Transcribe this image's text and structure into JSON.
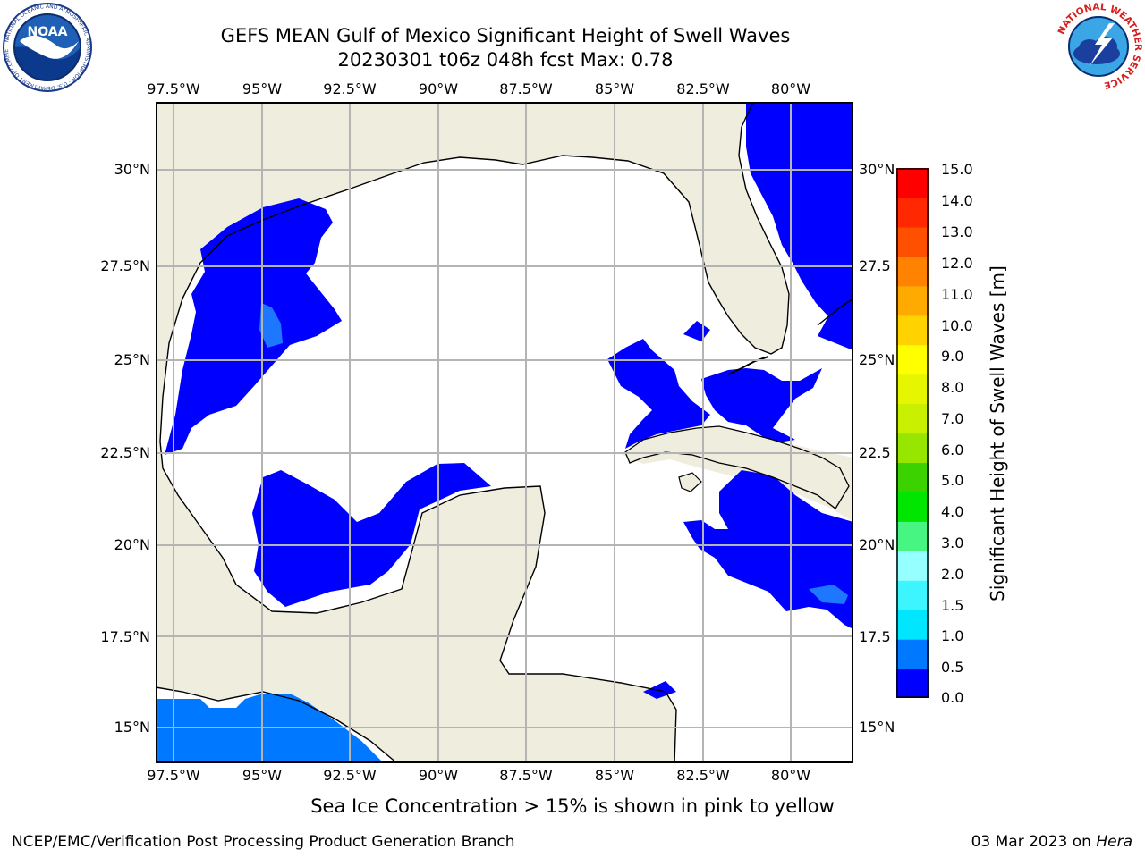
{
  "title_line1": "GEFS MEAN Gulf of Mexico Significant Height of Swell Waves",
  "title_line2": "20230301 t06z 048h fcst   Max: 0.78",
  "logos": {
    "left": {
      "name": "noaa-logo",
      "text": "NOAA",
      "ring_text": "NATIONAL OCEANIC AND ATMOSPHERIC ADMINISTRATION · U.S. DEPARTMENT OF COMMERCE"
    },
    "right": {
      "name": "national-weather-service-logo",
      "ring_text": "NATIONAL WEATHER SERVICE"
    }
  },
  "map": {
    "lon_ticks": [
      "97.5°W",
      "95°W",
      "92.5°W",
      "90°W",
      "87.5°W",
      "85°W",
      "82.5°W",
      "80°W"
    ],
    "lat_ticks_left": [
      "30°N",
      "27.5°N",
      "25°N",
      "22.5°N",
      "20°N",
      "17.5°N",
      "15°N"
    ],
    "lat_ticks_right": [
      "30°N",
      "27.5",
      "25°N",
      "22.5",
      "20°N",
      "17.5",
      "15°N"
    ],
    "colors": {
      "land": "#efedde",
      "ocean": "#ffffff",
      "coast": "#000000",
      "grid": "#b4b4b4"
    }
  },
  "colorbar": {
    "label": "Significant Height of Swell Waves [m]",
    "ticks": [
      "15.0",
      "14.0",
      "13.0",
      "12.0",
      "11.0",
      "10.0",
      "9.0",
      "8.0",
      "7.0",
      "6.0",
      "5.0",
      "4.0",
      "3.0",
      "2.0",
      "1.5",
      "1.0",
      "0.5",
      "0.0"
    ],
    "colors_bottom_to_top": [
      "#0000ff",
      "#0078ff",
      "#00e6ff",
      "#3cf5ff",
      "#96ffff",
      "#46f582",
      "#00e600",
      "#3cd200",
      "#96e600",
      "#c8f000",
      "#e6f500",
      "#ffff00",
      "#ffd200",
      "#ffaa00",
      "#ff8200",
      "#ff5000",
      "#ff2800",
      "#ff0000"
    ]
  },
  "note": "Sea Ice Concentration > 15% is shown in pink to yellow",
  "footer": {
    "left": "NCEP/EMC/Verification Post Processing Product Generation Branch",
    "right_date": "03 Mar 2023 on ",
    "right_host": "Hera"
  }
}
